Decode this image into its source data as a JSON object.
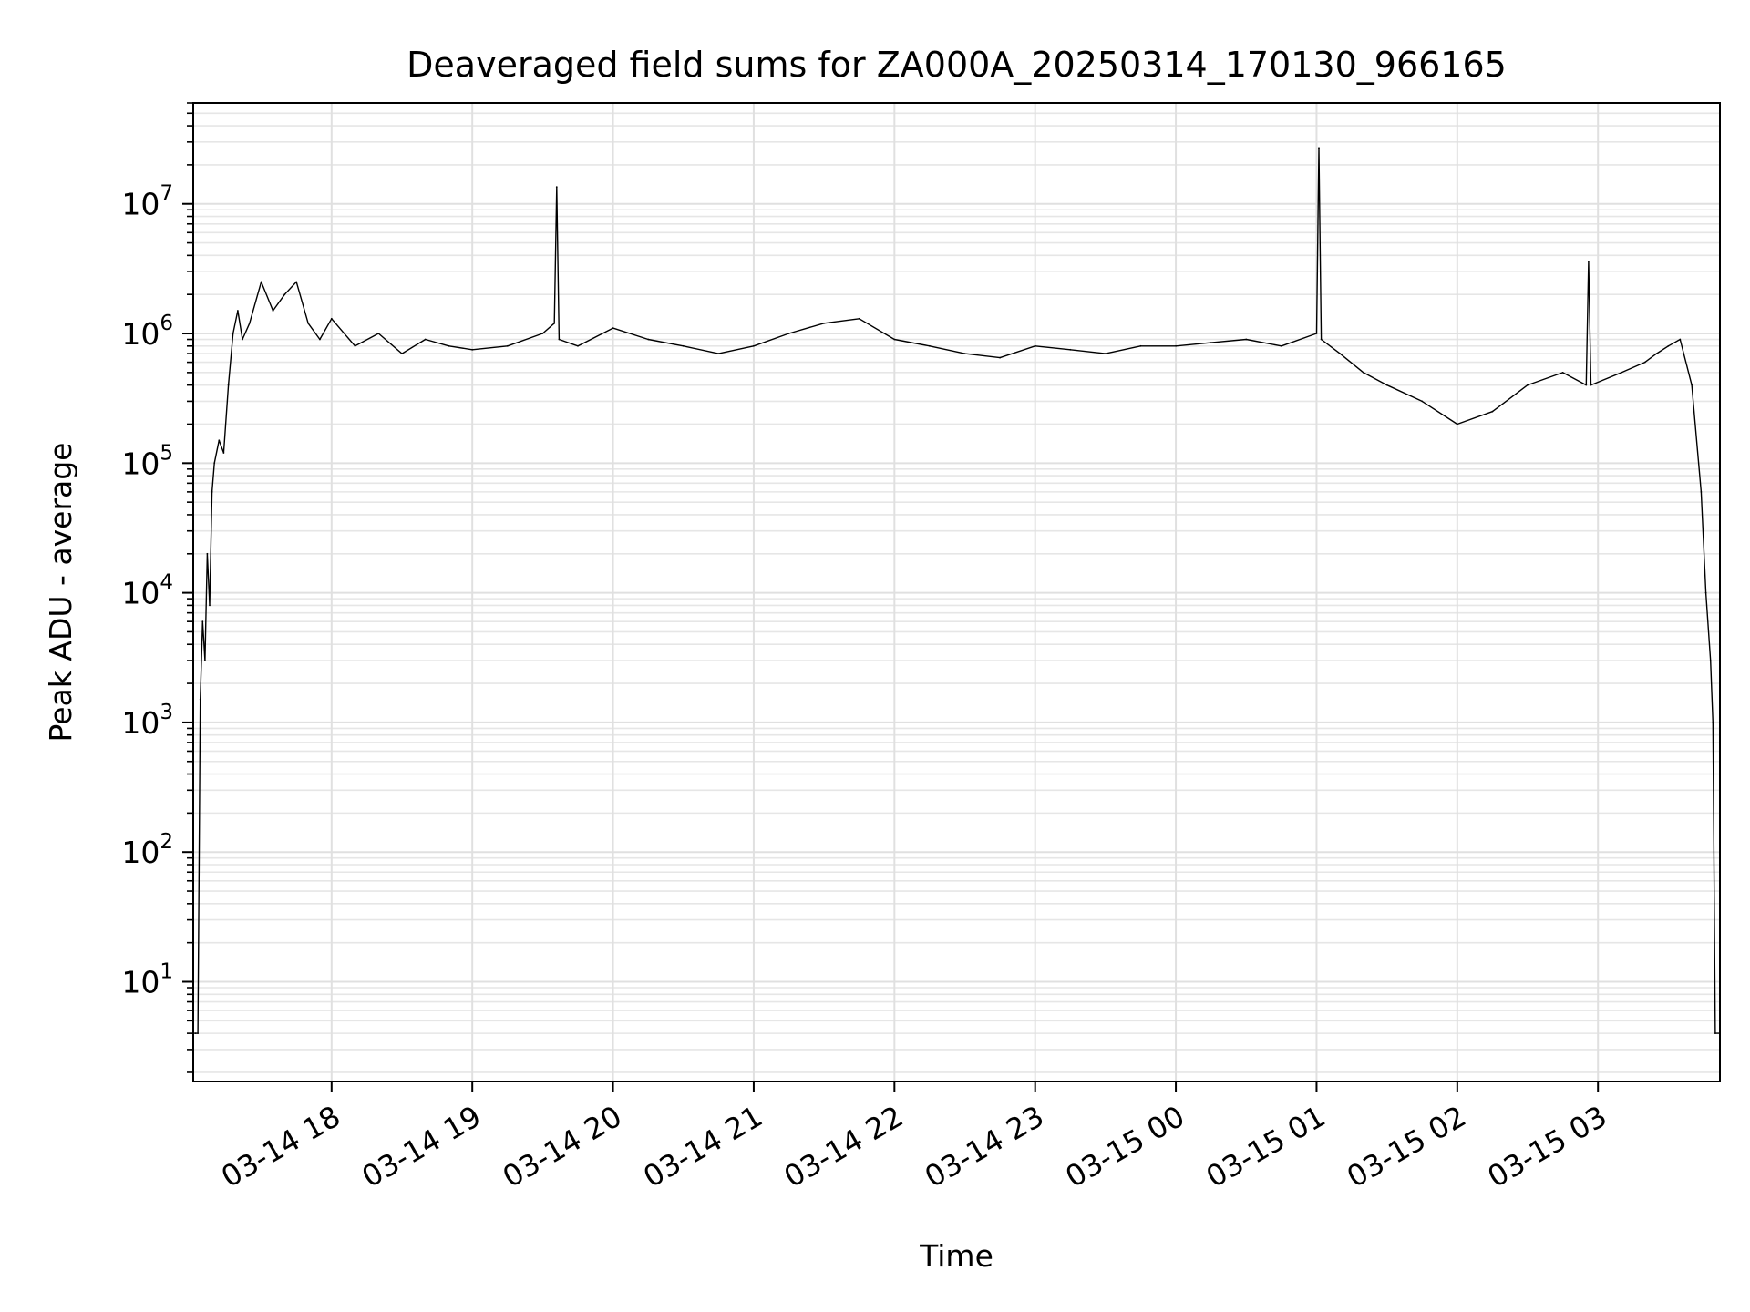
{
  "chart_data": {
    "type": "line",
    "title": "Deaveraged field sums for ZA000A_20250314_170130_966165",
    "xlabel": "Time",
    "ylabel": "Peak ADU - average",
    "yscale": "log",
    "grid": true,
    "grid_minor": true,
    "legend": "none",
    "xlim": [
      "2025-03-14 17:01",
      "2025-03-15 03:52"
    ],
    "ylim": [
      1.7,
      60000000
    ],
    "x_ticks": [
      {
        "value": "2025-03-14 18:00",
        "label": "03-14 18"
      },
      {
        "value": "2025-03-14 19:00",
        "label": "03-14 19"
      },
      {
        "value": "2025-03-14 20:00",
        "label": "03-14 20"
      },
      {
        "value": "2025-03-14 21:00",
        "label": "03-14 21"
      },
      {
        "value": "2025-03-14 22:00",
        "label": "03-14 22"
      },
      {
        "value": "2025-03-14 23:00",
        "label": "03-14 23"
      },
      {
        "value": "2025-03-15 00:00",
        "label": "03-15 00"
      },
      {
        "value": "2025-03-15 01:00",
        "label": "03-15 01"
      },
      {
        "value": "2025-03-15 02:00",
        "label": "03-15 02"
      },
      {
        "value": "2025-03-15 03:00",
        "label": "03-15 03"
      }
    ],
    "y_ticks": [
      {
        "value": 10,
        "exp": "1"
      },
      {
        "value": 100,
        "exp": "2"
      },
      {
        "value": 1000,
        "exp": "3"
      },
      {
        "value": 10000,
        "exp": "4"
      },
      {
        "value": 100000,
        "exp": "5"
      },
      {
        "value": 1000000,
        "exp": "6"
      },
      {
        "value": 10000000,
        "exp": "7"
      }
    ],
    "series": [
      {
        "color": "#000000",
        "x": [
          "2025-03-14 17:01",
          "2025-03-14 17:02",
          "2025-03-14 17:03",
          "2025-03-14 17:04",
          "2025-03-14 17:05",
          "2025-03-14 17:06",
          "2025-03-14 17:07",
          "2025-03-14 17:08",
          "2025-03-14 17:09",
          "2025-03-14 17:10",
          "2025-03-14 17:12",
          "2025-03-14 17:14",
          "2025-03-14 17:16",
          "2025-03-14 17:18",
          "2025-03-14 17:20",
          "2025-03-14 17:22",
          "2025-03-14 17:25",
          "2025-03-14 17:30",
          "2025-03-14 17:35",
          "2025-03-14 17:40",
          "2025-03-14 17:45",
          "2025-03-14 17:50",
          "2025-03-14 17:55",
          "2025-03-14 18:00",
          "2025-03-14 18:10",
          "2025-03-14 18:20",
          "2025-03-14 18:30",
          "2025-03-14 18:40",
          "2025-03-14 18:50",
          "2025-03-14 19:00",
          "2025-03-14 19:15",
          "2025-03-14 19:30",
          "2025-03-14 19:35",
          "2025-03-14 19:36",
          "2025-03-14 19:37",
          "2025-03-14 19:45",
          "2025-03-14 20:00",
          "2025-03-14 20:15",
          "2025-03-14 20:30",
          "2025-03-14 20:45",
          "2025-03-14 21:00",
          "2025-03-14 21:15",
          "2025-03-14 21:30",
          "2025-03-14 21:45",
          "2025-03-14 22:00",
          "2025-03-14 22:15",
          "2025-03-14 22:30",
          "2025-03-14 22:45",
          "2025-03-14 23:00",
          "2025-03-14 23:15",
          "2025-03-14 23:30",
          "2025-03-14 23:45",
          "2025-03-15 00:00",
          "2025-03-15 00:15",
          "2025-03-15 00:30",
          "2025-03-15 00:45",
          "2025-03-15 01:00",
          "2025-03-15 01:01",
          "2025-03-15 01:02",
          "2025-03-15 01:10",
          "2025-03-15 01:20",
          "2025-03-15 01:30",
          "2025-03-15 01:45",
          "2025-03-15 02:00",
          "2025-03-15 02:15",
          "2025-03-15 02:30",
          "2025-03-15 02:45",
          "2025-03-15 02:55",
          "2025-03-15 02:56",
          "2025-03-15 02:57",
          "2025-03-15 03:10",
          "2025-03-15 03:20",
          "2025-03-15 03:25",
          "2025-03-15 03:30",
          "2025-03-15 03:35",
          "2025-03-15 03:40",
          "2025-03-15 03:44",
          "2025-03-15 03:46",
          "2025-03-15 03:48",
          "2025-03-15 03:49",
          "2025-03-15 03:50",
          "2025-03-15 03:52"
        ],
        "y": [
          4,
          4,
          4,
          1500,
          6000,
          3000,
          20000,
          8000,
          60000,
          100000,
          150000,
          120000,
          400000,
          1000000,
          1500000,
          900000,
          1200000,
          2500000,
          1500000,
          2000000,
          2500000,
          1200000,
          900000,
          1300000,
          800000,
          1000000,
          700000,
          900000,
          800000,
          750000,
          800000,
          1000000,
          1200000,
          13500000,
          900000,
          800000,
          1100000,
          900000,
          800000,
          700000,
          800000,
          1000000,
          1200000,
          1300000,
          900000,
          800000,
          700000,
          650000,
          800000,
          750000,
          700000,
          800000,
          800000,
          850000,
          900000,
          800000,
          1000000,
          27000000,
          900000,
          700000,
          500000,
          400000,
          300000,
          200000,
          250000,
          400000,
          500000,
          400000,
          3600000,
          400000,
          500000,
          600000,
          700000,
          800000,
          900000,
          400000,
          60000,
          10000,
          3000,
          1000,
          4,
          4
        ]
      }
    ]
  }
}
